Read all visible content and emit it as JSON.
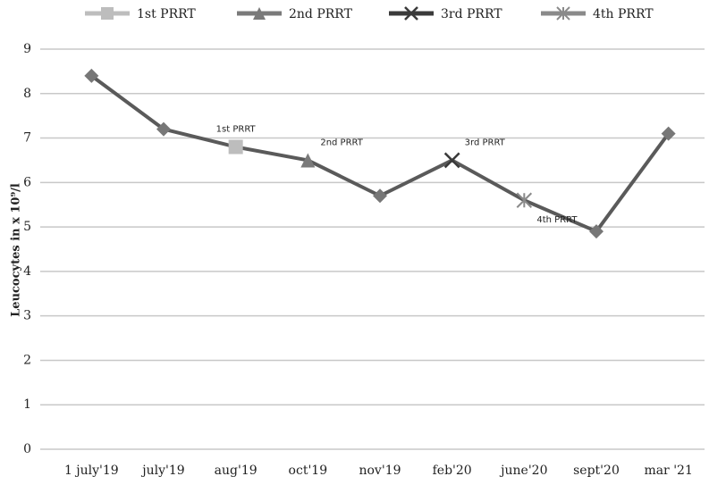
{
  "chart_data": {
    "type": "line",
    "y_label": "Leucocytes in x 10⁹/l",
    "categories": [
      "1 july'19",
      "july'19",
      "aug'19",
      "oct'19",
      "nov'19",
      "feb'20",
      "june'20",
      "sept'20",
      "mar '21"
    ],
    "series": [
      {
        "color": "#5a5a5a",
        "values": [
          8.4,
          7.2,
          6.8,
          6.5,
          5.7,
          6.5,
          5.6,
          4.9,
          7.1
        ]
      }
    ],
    "events": [
      {
        "name": "1st PRRT",
        "category": "aug'19",
        "marker": "square",
        "color": "#bdbdbd"
      },
      {
        "name": "2nd PRRT",
        "category": "oct'19",
        "marker": "triangle",
        "color": "#7a7a7a"
      },
      {
        "name": "3rd PRRT",
        "category": "feb'20",
        "marker": "x",
        "color": "#3a3a3a"
      },
      {
        "name": "4th PRRT",
        "category": "june'20",
        "marker": "star",
        "color": "#8a8a8a"
      }
    ],
    "ylim": [
      0,
      9
    ],
    "yticks": [
      0,
      1,
      2,
      3,
      4,
      5,
      6,
      7,
      8,
      9
    ],
    "grid": true
  }
}
